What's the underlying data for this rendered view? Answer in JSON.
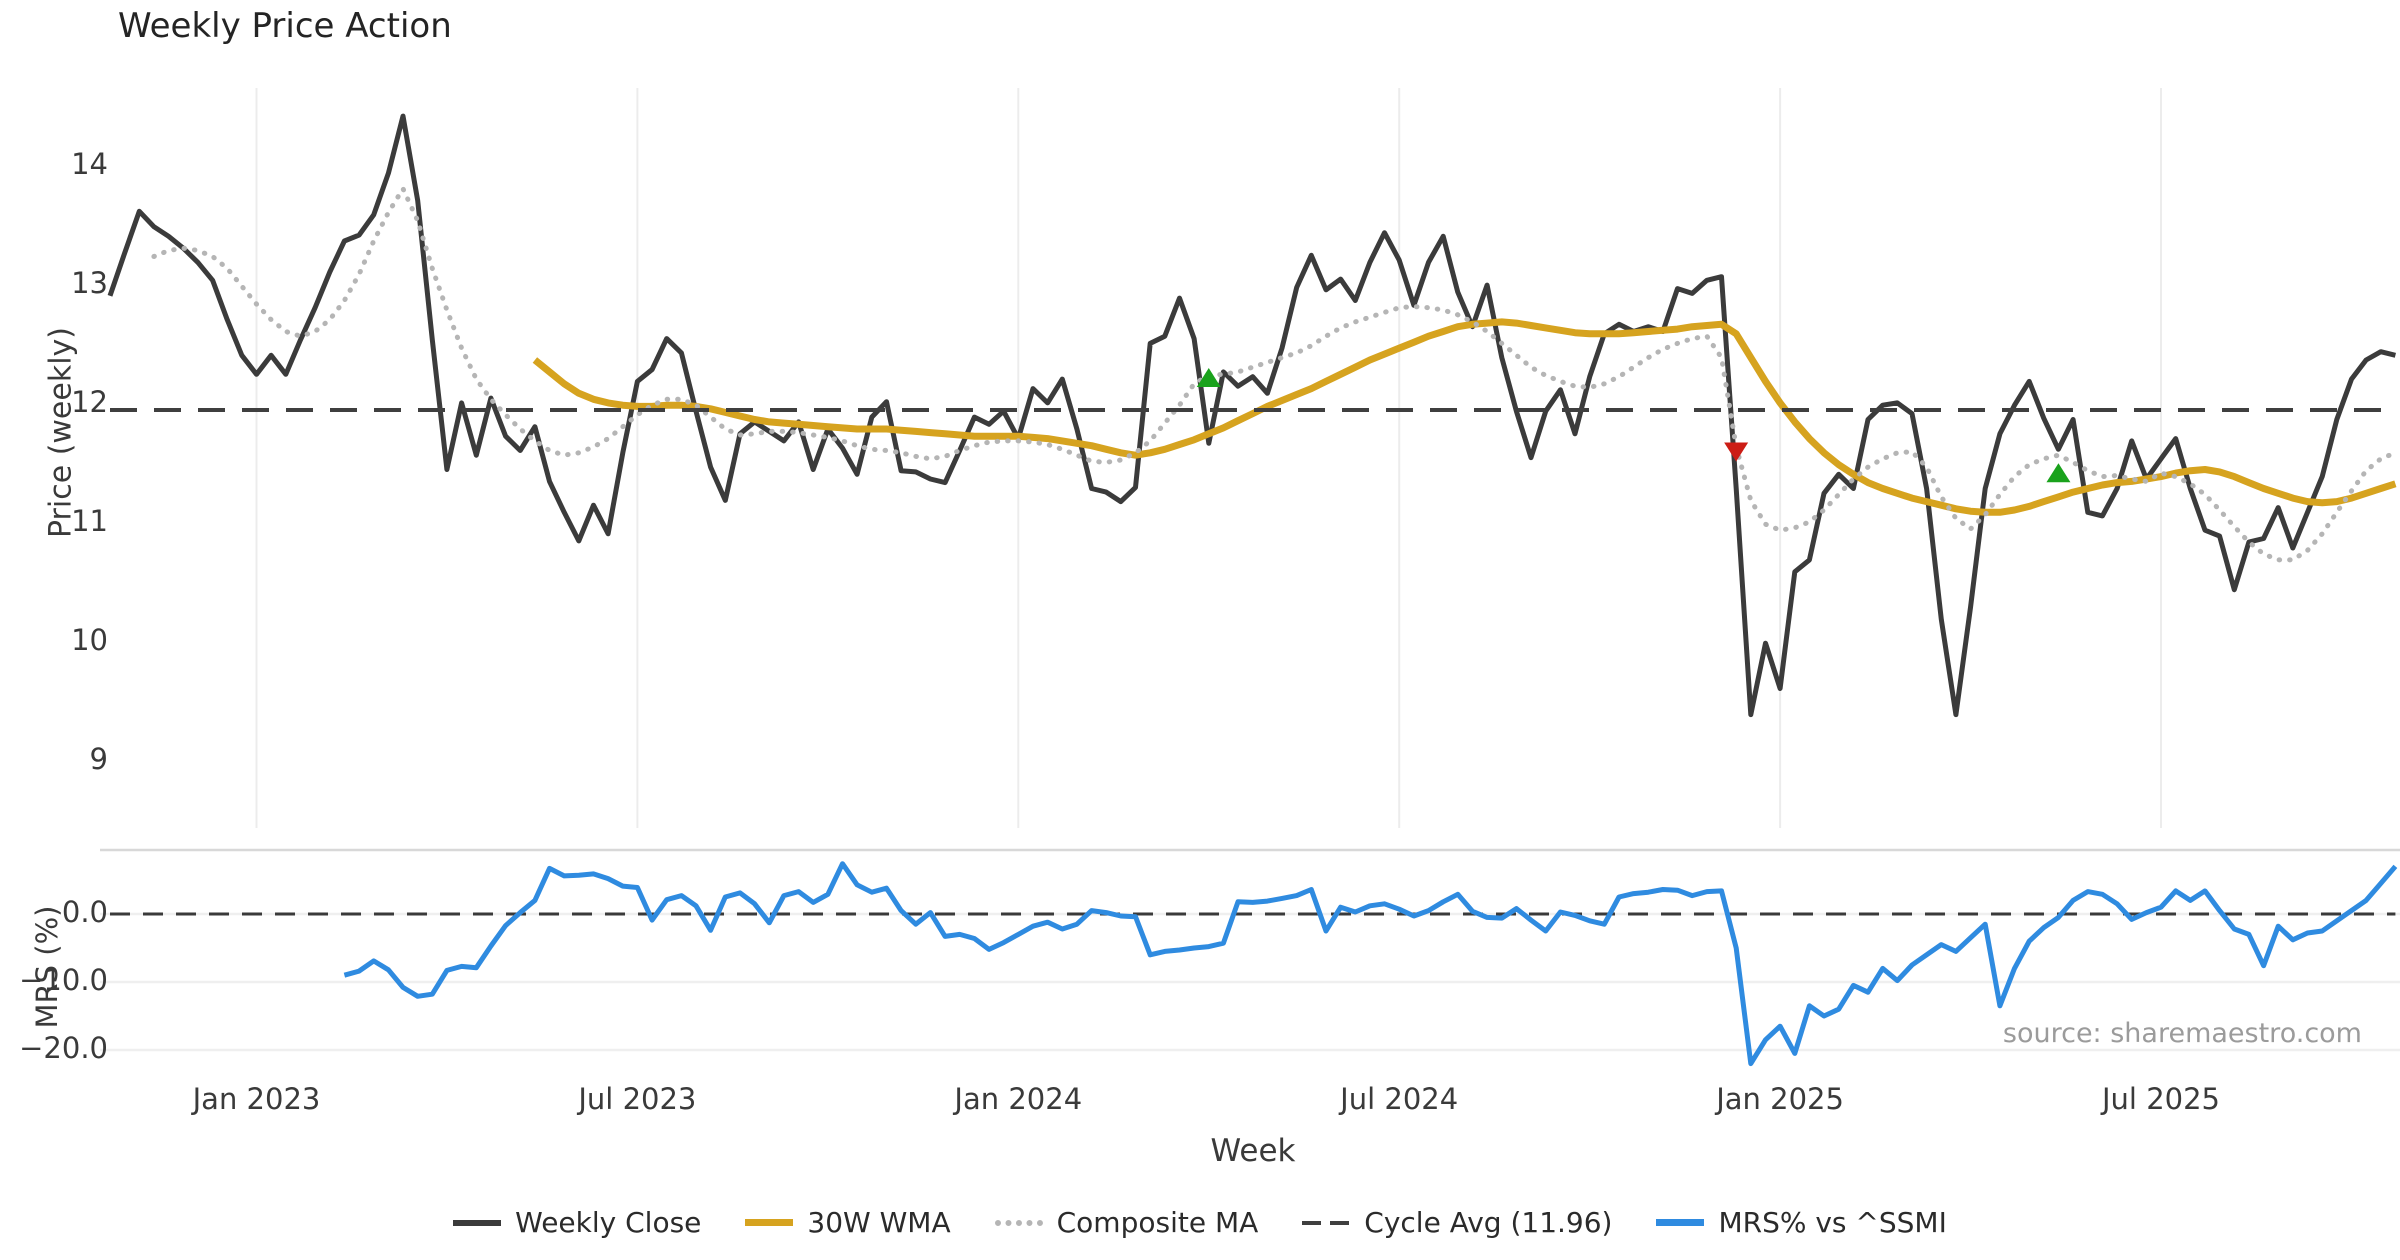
{
  "page": {
    "title": "Weekly Price Action",
    "source_note": "source: sharemaestro.com"
  },
  "chart_data": {
    "type": "line",
    "title": "Weekly Price Action",
    "x_axis": {
      "label": "Week",
      "tick_labels": [
        "Jan 2023",
        "Jul 2023",
        "Jan 2024",
        "Jul 2024",
        "Jan 2025",
        "Jul 2025"
      ],
      "tick_week_index": [
        10,
        36,
        62,
        88,
        114,
        140
      ],
      "weeks_total": 157
    },
    "price_panel": {
      "ylabel": "Price (weekly)",
      "yticks": [
        14,
        13,
        12,
        11,
        10,
        9
      ],
      "ylim": [
        8.8,
        14.7
      ],
      "grid": "vertical-only",
      "cycle_avg_value": 11.96
    },
    "mrs_panel": {
      "ylabel": "MRS (%)",
      "ytick_labels": [
        "0.0",
        "−10.0",
        "−20.0"
      ],
      "ytick_values": [
        0,
        -10,
        -20
      ],
      "ylim": [
        -24,
        9.5
      ],
      "zero_line": 0
    },
    "series": [
      {
        "name": "Weekly Close",
        "panel": "price",
        "style": "solid",
        "color": "#3b3b3b",
        "width": 5,
        "start_index": 0,
        "values": [
          12.92,
          13.28,
          13.63,
          13.5,
          13.42,
          13.32,
          13.2,
          13.05,
          12.72,
          12.42,
          12.26,
          12.42,
          12.26,
          12.55,
          12.82,
          13.12,
          13.38,
          13.43,
          13.6,
          13.95,
          14.43,
          13.72,
          12.55,
          11.46,
          12.02,
          11.58,
          12.06,
          11.74,
          11.62,
          11.82,
          11.36,
          11.1,
          10.86,
          11.16,
          10.92,
          11.6,
          12.2,
          12.3,
          12.56,
          12.44,
          11.95,
          11.48,
          11.2,
          11.76,
          11.86,
          11.78,
          11.7,
          11.86,
          11.46,
          11.8,
          11.64,
          11.42,
          11.9,
          12.03,
          11.45,
          11.44,
          11.38,
          11.35,
          11.62,
          11.9,
          11.84,
          11.95,
          11.72,
          12.14,
          12.02,
          12.22,
          11.8,
          11.3,
          11.27,
          11.19,
          11.31,
          12.52,
          12.58,
          12.9,
          12.56,
          11.68,
          12.28,
          12.16,
          12.24,
          12.1,
          12.48,
          12.99,
          13.26,
          12.97,
          13.06,
          12.88,
          13.2,
          13.45,
          13.22,
          12.84,
          13.2,
          13.42,
          12.95,
          12.66,
          13.01,
          12.4,
          11.95,
          11.56,
          11.95,
          12.13,
          11.76,
          12.24,
          12.6,
          12.68,
          12.62,
          12.66,
          12.62,
          12.98,
          12.94,
          13.05,
          13.08,
          11.3,
          9.4,
          10.0,
          9.62,
          10.6,
          10.7,
          11.26,
          11.42,
          11.3,
          11.88,
          12.0,
          12.02,
          11.93,
          11.3,
          10.2,
          9.4,
          10.3,
          11.3,
          11.76,
          12.0,
          12.2,
          11.89,
          11.63,
          11.88,
          11.1,
          11.07,
          11.3,
          11.7,
          11.38,
          11.55,
          11.72,
          11.3,
          10.95,
          10.9,
          10.45,
          10.85,
          10.88,
          11.14,
          10.8,
          11.1,
          11.4,
          11.88,
          12.22,
          12.38,
          12.45,
          12.42
        ]
      },
      {
        "name": "30W WMA",
        "panel": "price",
        "style": "solid",
        "color": "#d6a31f",
        "width": 7,
        "start_index": 29,
        "values": [
          12.38,
          12.28,
          12.18,
          12.1,
          12.05,
          12.02,
          12.0,
          11.99,
          11.99,
          12.0,
          12.0,
          11.99,
          11.97,
          11.94,
          11.91,
          11.88,
          11.86,
          11.85,
          11.84,
          11.83,
          11.82,
          11.81,
          11.8,
          11.8,
          11.8,
          11.79,
          11.78,
          11.77,
          11.76,
          11.75,
          11.74,
          11.74,
          11.74,
          11.74,
          11.73,
          11.72,
          11.7,
          11.68,
          11.66,
          11.63,
          11.6,
          11.58,
          11.6,
          11.63,
          11.67,
          11.71,
          11.76,
          11.81,
          11.87,
          11.93,
          11.99,
          12.04,
          12.09,
          12.14,
          12.2,
          12.26,
          12.32,
          12.38,
          12.43,
          12.48,
          12.53,
          12.58,
          12.62,
          12.66,
          12.68,
          12.69,
          12.7,
          12.69,
          12.67,
          12.65,
          12.63,
          12.61,
          12.6,
          12.6,
          12.6,
          12.61,
          12.62,
          12.63,
          12.64,
          12.66,
          12.67,
          12.68,
          12.6,
          12.4,
          12.2,
          12.02,
          11.86,
          11.72,
          11.6,
          11.5,
          11.42,
          11.35,
          11.3,
          11.26,
          11.22,
          11.19,
          11.16,
          11.13,
          11.11,
          11.1,
          11.1,
          11.12,
          11.15,
          11.19,
          11.23,
          11.27,
          11.3,
          11.33,
          11.35,
          11.36,
          11.38,
          11.4,
          11.43,
          11.45,
          11.46,
          11.44,
          11.4,
          11.35,
          11.3,
          11.26,
          11.22,
          11.19,
          11.18,
          11.19,
          11.22,
          11.26,
          11.3,
          11.34
        ]
      },
      {
        "name": "Composite MA",
        "panel": "price",
        "style": "dotted",
        "color": "#b5b5b5",
        "width": 5,
        "start_index": 3,
        "values": [
          13.25,
          13.3,
          13.32,
          13.3,
          13.25,
          13.15,
          13.0,
          12.85,
          12.72,
          12.62,
          12.58,
          12.62,
          12.72,
          12.88,
          13.1,
          13.38,
          13.62,
          13.82,
          13.55,
          13.15,
          12.8,
          12.48,
          12.22,
          12.05,
          11.92,
          11.8,
          11.7,
          11.62,
          11.58,
          11.6,
          11.65,
          11.72,
          11.82,
          11.92,
          12.0,
          12.05,
          12.05,
          12.0,
          11.9,
          11.8,
          11.75,
          11.76,
          11.78,
          11.78,
          11.77,
          11.75,
          11.73,
          11.7,
          11.66,
          11.63,
          11.62,
          11.6,
          11.57,
          11.55,
          11.57,
          11.62,
          11.66,
          11.69,
          11.7,
          11.7,
          11.69,
          11.67,
          11.63,
          11.58,
          11.53,
          11.52,
          11.54,
          11.6,
          11.7,
          11.85,
          12.0,
          12.18,
          12.25,
          12.26,
          12.28,
          12.32,
          12.36,
          12.4,
          12.44,
          12.5,
          12.58,
          12.65,
          12.7,
          12.74,
          12.78,
          12.82,
          12.83,
          12.82,
          12.8,
          12.76,
          12.7,
          12.62,
          12.52,
          12.42,
          12.32,
          12.25,
          12.2,
          12.16,
          12.15,
          12.18,
          12.24,
          12.32,
          12.4,
          12.47,
          12.52,
          12.56,
          12.58,
          12.4,
          11.65,
          11.2,
          11.0,
          10.95,
          10.97,
          11.02,
          11.12,
          11.25,
          11.38,
          11.48,
          11.55,
          11.6,
          11.61,
          11.48,
          11.23,
          11.05,
          10.96,
          11.08,
          11.25,
          11.4,
          11.5,
          11.55,
          11.58,
          11.52,
          11.45,
          11.4,
          11.41,
          11.38,
          11.36,
          11.43,
          11.4,
          11.34,
          11.25,
          11.12,
          10.98,
          10.85,
          10.75,
          10.7,
          10.7,
          10.78,
          10.92,
          11.1,
          11.28,
          11.45,
          11.55,
          11.6
        ]
      },
      {
        "name": "Cycle Avg (11.96)",
        "panel": "price",
        "style": "dashed",
        "color": "#3f3f3f",
        "width": 4,
        "hline": 11.96
      },
      {
        "name": "MRS% vs ^SSMI",
        "panel": "mrs",
        "style": "solid",
        "color": "#2f8be0",
        "width": 5,
        "start_index": 16,
        "values": [
          -9.0,
          -8.4,
          -6.9,
          -8.2,
          -10.8,
          -12.1,
          -11.8,
          -8.3,
          -7.7,
          -7.9,
          -4.7,
          -1.7,
          0.2,
          2.0,
          6.7,
          5.6,
          5.7,
          5.9,
          5.2,
          4.1,
          3.9,
          -0.9,
          2.1,
          2.7,
          1.2,
          -2.4,
          2.5,
          3.1,
          1.5,
          -1.3,
          2.7,
          3.3,
          1.7,
          2.9,
          7.4,
          4.3,
          3.2,
          3.8,
          0.5,
          -1.5,
          0.2,
          -3.3,
          -3.0,
          -3.6,
          -5.2,
          -4.2,
          -3.0,
          -1.8,
          -1.2,
          -2.2,
          -1.5,
          0.5,
          0.2,
          -0.3,
          -0.4,
          -6.0,
          -5.5,
          -5.3,
          -5.0,
          -4.8,
          -4.3,
          1.8,
          1.7,
          1.9,
          2.3,
          2.7,
          3.6,
          -2.5,
          1.0,
          0.3,
          1.2,
          1.5,
          0.7,
          -0.3,
          0.5,
          1.8,
          2.9,
          0.4,
          -0.5,
          -0.6,
          0.8,
          -0.9,
          -2.5,
          0.3,
          -0.2,
          -1.0,
          -1.5,
          2.5,
          3.0,
          3.2,
          3.6,
          3.5,
          2.7,
          3.3,
          3.4,
          -5.0,
          -22.0,
          -18.5,
          -16.5,
          -20.5,
          -13.5,
          -15.0,
          -14.0,
          -10.5,
          -11.5,
          -8.0,
          -9.8,
          -7.5,
          -6.0,
          -4.5,
          -5.5,
          -3.5,
          -1.5,
          -13.5,
          -8.0,
          -4.0,
          -2.0,
          -0.5,
          2.0,
          3.3,
          2.9,
          1.5,
          -0.8,
          0.2,
          1.0,
          3.4,
          2.0,
          3.4,
          0.5,
          -2.2,
          -3.0,
          -7.6,
          -1.8,
          -3.8,
          -2.8,
          -2.5,
          -1.0,
          0.5,
          2.0,
          4.5,
          7.0
        ]
      }
    ],
    "markers": {
      "buy_color": "#1aa21c",
      "sell_color": "#cc1d15",
      "buy": [
        {
          "week": 75,
          "price": 12.22
        },
        {
          "week": 133,
          "price": 11.42
        }
      ],
      "sell": [
        {
          "week": 111,
          "price": 11.62
        }
      ]
    },
    "legend": [
      {
        "label": "Weekly Close",
        "style": "solid",
        "color": "#3b3b3b"
      },
      {
        "label": "30W WMA",
        "style": "solid-thick",
        "color": "#d6a31f"
      },
      {
        "label": "Composite MA",
        "style": "dotted",
        "color": "#b5b5b5"
      },
      {
        "label": "Cycle Avg (11.96)",
        "style": "dashed",
        "color": "#3f3f3f"
      },
      {
        "label": "MRS% vs ^SSMI",
        "style": "solid-thick",
        "color": "#2f8be0"
      }
    ],
    "layout_hints": {
      "legend_position": "bottom-center",
      "grid": true
    }
  }
}
